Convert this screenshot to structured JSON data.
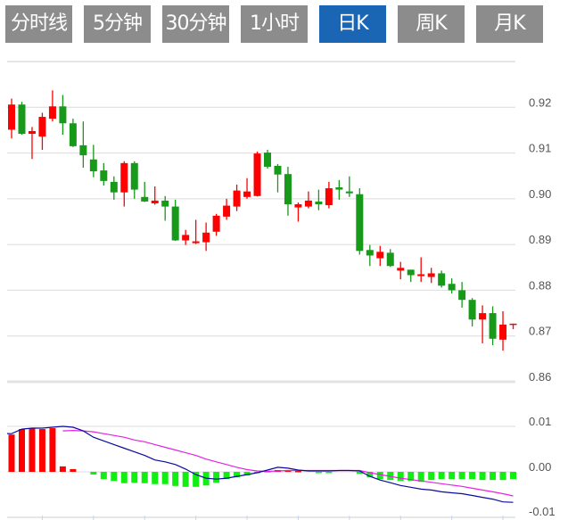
{
  "tabs": [
    {
      "label": "分时线",
      "active": false
    },
    {
      "label": "5分钟",
      "active": false
    },
    {
      "label": "30分钟",
      "active": false
    },
    {
      "label": "1小时",
      "active": false
    },
    {
      "label": "日K",
      "active": true
    },
    {
      "label": "周K",
      "active": false
    },
    {
      "label": "月K",
      "active": false
    }
  ],
  "colors": {
    "up": "#ff0000",
    "down": "#17991a",
    "hist_up": "#ff0000",
    "hist_down": "#11ee11",
    "dif": "#0a0aa0",
    "dea": "#e622e6",
    "grid": "#dcdcdc",
    "active_tab": "#1a66b5",
    "tab": "#8c8c8c"
  },
  "chart_data": [
    {
      "type": "candlestick",
      "title": "",
      "ylim": [
        0.86,
        0.93
      ],
      "y_ticks": [
        "0.92",
        "0.91",
        "0.90",
        "0.89",
        "0.88",
        "0.87",
        "0.86"
      ],
      "y_tick_values": [
        0.92,
        0.91,
        0.9,
        0.89,
        0.88,
        0.87,
        0.86
      ],
      "grid": true,
      "ohlc": [
        [
          0.9151,
          0.9219,
          0.9132,
          0.9206
        ],
        [
          0.9206,
          0.9212,
          0.914,
          0.9142
        ],
        [
          0.9142,
          0.9157,
          0.9087,
          0.9148
        ],
        [
          0.9136,
          0.9188,
          0.9107,
          0.9179
        ],
        [
          0.9175,
          0.9237,
          0.9169,
          0.9202
        ],
        [
          0.9202,
          0.9227,
          0.914,
          0.9165
        ],
        [
          0.9165,
          0.9175,
          0.9113,
          0.9115
        ],
        [
          0.9117,
          0.9169,
          0.9068,
          0.9095
        ],
        [
          0.9086,
          0.9118,
          0.9047,
          0.906
        ],
        [
          0.9062,
          0.9078,
          0.9029,
          0.9039
        ],
        [
          0.9037,
          0.9049,
          0.8998,
          0.9014
        ],
        [
          0.9014,
          0.9082,
          0.8983,
          0.9078
        ],
        [
          0.9078,
          0.9082,
          0.9,
          0.902
        ],
        [
          0.9004,
          0.9037,
          0.8993,
          0.8994
        ],
        [
          0.899,
          0.9027,
          0.8987,
          0.8996
        ],
        [
          0.8996,
          0.9006,
          0.8952,
          0.8983
        ],
        [
          0.8983,
          0.8998,
          0.8908,
          0.8909
        ],
        [
          0.8909,
          0.8932,
          0.8899,
          0.8921
        ],
        [
          0.8903,
          0.8954,
          0.8901,
          0.8907
        ],
        [
          0.8905,
          0.8948,
          0.8886,
          0.8926
        ],
        [
          0.8928,
          0.8967,
          0.8919,
          0.8963
        ],
        [
          0.8961,
          0.9,
          0.8954,
          0.8985
        ],
        [
          0.8983,
          0.9031,
          0.8973,
          0.9018
        ],
        [
          0.9004,
          0.9045,
          0.9,
          0.9016
        ],
        [
          0.9006,
          0.9103,
          0.9005,
          0.9099
        ],
        [
          0.9101,
          0.9107,
          0.9066,
          0.907
        ],
        [
          0.9072,
          0.9076,
          0.9014,
          0.9053
        ],
        [
          0.9054,
          0.907,
          0.8963,
          0.8988
        ],
        [
          0.8981,
          0.8992,
          0.895,
          0.8988
        ],
        [
          0.8983,
          0.9016,
          0.8979,
          0.8996
        ],
        [
          0.8994,
          0.902,
          0.8975,
          0.8988
        ],
        [
          0.8986,
          0.9037,
          0.8979,
          0.9023
        ],
        [
          0.9025,
          0.9041,
          0.8998,
          0.902
        ],
        [
          0.9016,
          0.9049,
          0.9004,
          0.9012
        ],
        [
          0.901,
          0.9023,
          0.8878,
          0.8886
        ],
        [
          0.8888,
          0.8899,
          0.8853,
          0.8876
        ],
        [
          0.887,
          0.8897,
          0.8853,
          0.8884
        ],
        [
          0.8882,
          0.889,
          0.8851,
          0.8853
        ],
        [
          0.8843,
          0.8862,
          0.8824,
          0.8849
        ],
        [
          0.8845,
          0.8845,
          0.8818,
          0.8833
        ],
        [
          0.8831,
          0.8872,
          0.8818,
          0.8835
        ],
        [
          0.8829,
          0.8849,
          0.8816,
          0.8837
        ],
        [
          0.8837,
          0.8843,
          0.8806,
          0.881
        ],
        [
          0.8814,
          0.8826,
          0.8793,
          0.88
        ],
        [
          0.88,
          0.8818,
          0.8762,
          0.8779
        ],
        [
          0.8779,
          0.8783,
          0.8721,
          0.8736
        ],
        [
          0.8736,
          0.8767,
          0.8684,
          0.875
        ],
        [
          0.875,
          0.8765,
          0.868,
          0.8694
        ],
        [
          0.8692,
          0.8754,
          0.8668,
          0.8725
        ],
        [
          0.8725,
          0.8727,
          0.8715,
          0.8727
        ]
      ],
      "ohlc_order": [
        "open",
        "high",
        "low",
        "close"
      ]
    },
    {
      "type": "macd",
      "ylim": [
        -0.01,
        0.0167
      ],
      "y_ticks": [
        "0.01",
        "0.00",
        "-0.01"
      ],
      "y_tick_values": [
        0.01,
        0.0,
        -0.01
      ],
      "histogram": [
        0.0082,
        0.0094,
        0.0096,
        0.0094,
        0.0096,
        0.0012,
        0.0006,
        0,
        -0.0006,
        -0.0016,
        -0.002,
        -0.0025,
        -0.0024,
        -0.0025,
        -0.0027,
        -0.0027,
        -0.0031,
        -0.0033,
        -0.0033,
        -0.003,
        -0.0024,
        -0.0016,
        -0.0012,
        -0.0008,
        -0.0002,
        0.0002,
        0.0004,
        0.0004,
        0.0002,
        0,
        -0.0002,
        -0.0002,
        0,
        0,
        -0.0004,
        -0.0012,
        -0.0016,
        -0.0018,
        -0.002,
        -0.002,
        -0.0022,
        -0.0018,
        -0.0016,
        -0.0016,
        -0.0016,
        -0.0016,
        -0.0018,
        -0.0018,
        -0.0018,
        -0.0016
      ],
      "dif": [
        0.0084,
        0.0094,
        0.0096,
        0.0096,
        0.0098,
        0.01,
        0.0098,
        0.009,
        0.0076,
        0.0068,
        0.006,
        0.0052,
        0.0044,
        0.0036,
        0.0026,
        0.0022,
        0.0016,
        0.0006,
        -0.0006,
        -0.0014,
        -0.0016,
        -0.0014,
        -0.001,
        -0.0006,
        -0.0002,
        0.0004,
        0.001,
        0.0008,
        0.0004,
        0.0002,
        0.0002,
        0.0002,
        0.0003,
        0.0003,
        0.0002,
        -0.001,
        -0.0018,
        -0.0024,
        -0.003,
        -0.0034,
        -0.0038,
        -0.004,
        -0.0044,
        -0.0046,
        -0.0048,
        -0.0052,
        -0.0056,
        -0.006,
        -0.0066,
        -0.0067
      ],
      "dea": [
        null,
        null,
        null,
        null,
        null,
        0.009,
        0.0091,
        0.009,
        0.0088,
        0.0084,
        0.008,
        0.0076,
        0.007,
        0.0066,
        0.006,
        0.0054,
        0.0048,
        0.0042,
        0.0036,
        0.0028,
        0.0022,
        0.0016,
        0.001,
        0.0005,
        0.0002,
        0.0001,
        0.0002,
        0.0003,
        0.0003,
        0.0003,
        0.0003,
        0.0003,
        0.0003,
        0.0003,
        0.0003,
        -0.0002,
        -0.0006,
        -0.001,
        -0.0014,
        -0.0017,
        -0.002,
        -0.0023,
        -0.0026,
        -0.0029,
        -0.0032,
        -0.0036,
        -0.004,
        -0.0044,
        -0.0048,
        -0.0053
      ]
    }
  ]
}
